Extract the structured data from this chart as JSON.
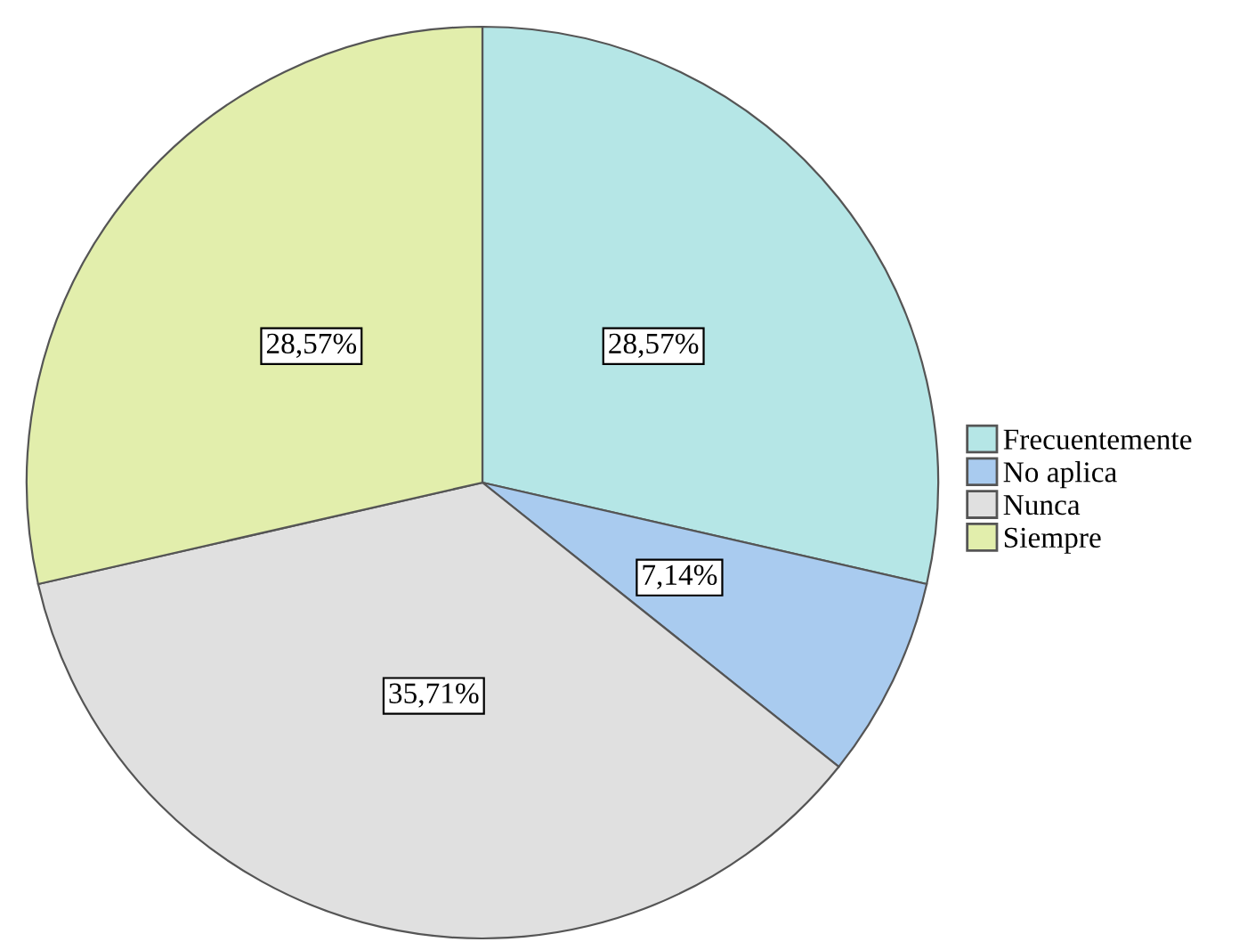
{
  "chart_data": {
    "type": "pie",
    "categories": [
      "Frecuentemente",
      "No aplica",
      "Nunca",
      "Siempre"
    ],
    "values": [
      28.57,
      7.14,
      35.71,
      28.57
    ],
    "value_labels": [
      "28,57%",
      "7,14%",
      "35,71%",
      "28,57%"
    ],
    "colors": [
      "#b5e6e6",
      "#a9cbef",
      "#e0e0e0",
      "#e2eeac"
    ],
    "legend": "right"
  }
}
